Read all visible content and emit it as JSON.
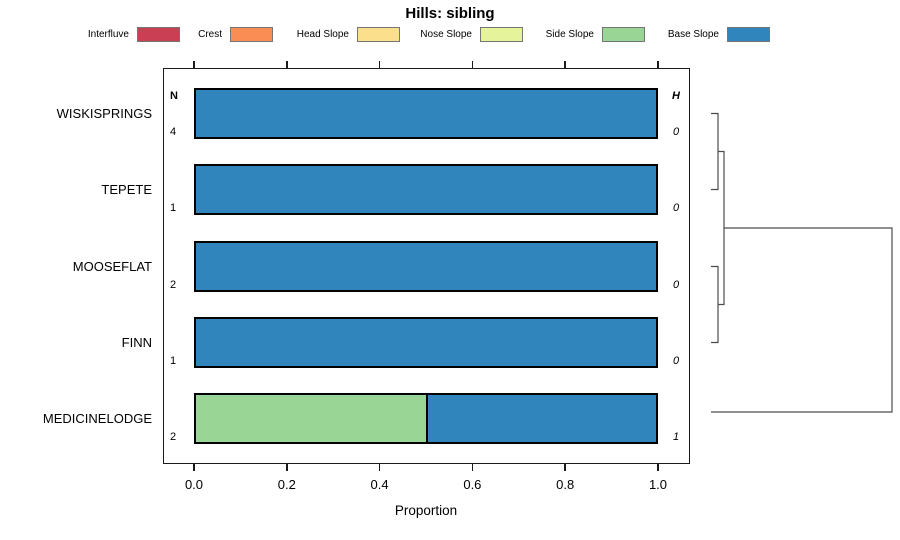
{
  "chart_data": {
    "type": "bar",
    "orientation": "horizontal-stacked",
    "title": "Hills: sibling",
    "xlabel": "Proportion",
    "xlim": [
      0,
      1
    ],
    "xticks": [
      "0.0",
      "0.2",
      "0.4",
      "0.6",
      "0.8",
      "1.0"
    ],
    "grid": false,
    "legend_position": "top",
    "columns": {
      "n_header": "N",
      "h_header": "H"
    },
    "legend": [
      {
        "label": "Interfluve",
        "color": "#C94052"
      },
      {
        "label": "Crest",
        "color": "#F98E54"
      },
      {
        "label": "Head Slope",
        "color": "#FCDF8D"
      },
      {
        "label": "Nose Slope",
        "color": "#E5F39B"
      },
      {
        "label": "Side Slope",
        "color": "#99D594"
      },
      {
        "label": "Base Slope",
        "color": "#3185BD"
      }
    ],
    "rows": [
      {
        "label": "WISKISPRINGS",
        "n": "4",
        "h": "0",
        "segments": [
          {
            "category": "Base Slope",
            "value": 1.0
          }
        ]
      },
      {
        "label": "TEPETE",
        "n": "1",
        "h": "0",
        "segments": [
          {
            "category": "Base Slope",
            "value": 1.0
          }
        ]
      },
      {
        "label": "MOOSEFLAT",
        "n": "2",
        "h": "0",
        "segments": [
          {
            "category": "Base Slope",
            "value": 1.0
          }
        ]
      },
      {
        "label": "FINN",
        "n": "1",
        "h": "0",
        "segments": [
          {
            "category": "Base Slope",
            "value": 1.0
          }
        ]
      },
      {
        "label": "MEDICINELODGE",
        "n": "2",
        "h": "1",
        "segments": [
          {
            "category": "Side Slope",
            "value": 0.5
          },
          {
            "category": "Base Slope",
            "value": 0.5
          }
        ]
      }
    ],
    "dendrogram": {
      "description": "cluster tree: ((WISKISPRINGS,TEPETE),(MOOSEFLAT,FINN)) joined, then merged with MEDICINELODGE at root",
      "links": [
        [
          [
            711,
            113.5
          ],
          [
            718,
            113.5
          ],
          [
            718,
            189.5
          ],
          [
            711,
            189.5
          ]
        ],
        [
          [
            711,
            266.5
          ],
          [
            718,
            266.5
          ],
          [
            718,
            342.5
          ],
          [
            711,
            342.5
          ]
        ],
        [
          [
            718,
            151.5
          ],
          [
            724,
            151.5
          ],
          [
            724,
            304.5
          ],
          [
            718,
            304.5
          ]
        ],
        [
          [
            724,
            228
          ],
          [
            892,
            228
          ],
          [
            892,
            412
          ],
          [
            711,
            412
          ]
        ]
      ],
      "line_color": "#4d4d4d"
    }
  }
}
